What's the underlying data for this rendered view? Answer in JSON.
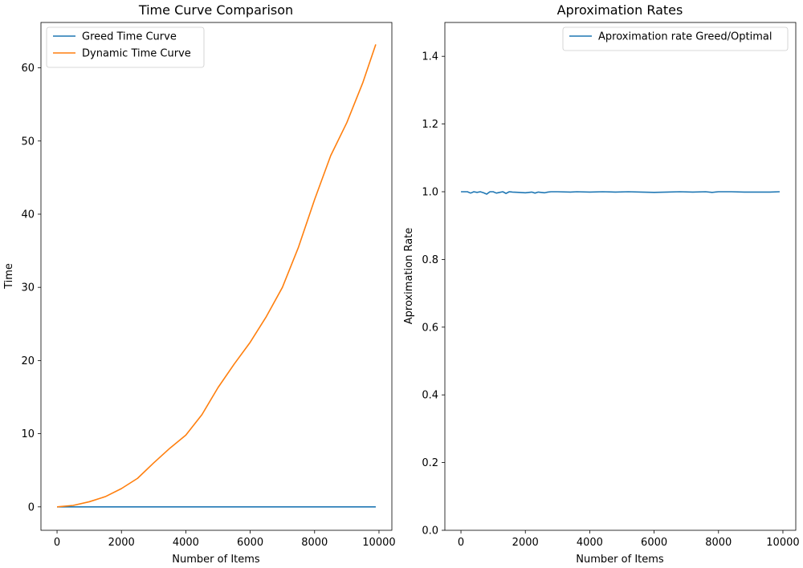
{
  "chart_data": [
    {
      "type": "line",
      "title": "Time Curve Comparison",
      "xlabel": "Number of Items",
      "ylabel": "Time",
      "xlim": [
        -500,
        10400
      ],
      "ylim": [
        -3.2,
        66.2
      ],
      "xticks": [
        "0",
        "2000",
        "4000",
        "6000",
        "8000",
        "10000"
      ],
      "yticks": [
        "0",
        "10",
        "20",
        "30",
        "40",
        "50",
        "60"
      ],
      "legend": "top-left",
      "x": [
        0,
        500,
        1000,
        1500,
        2000,
        2500,
        3000,
        3500,
        4000,
        4500,
        5000,
        5500,
        6000,
        6500,
        7000,
        7500,
        8000,
        8500,
        9000,
        9500,
        9900
      ],
      "series": [
        {
          "name": "Greed Time Curve",
          "color": "#1f77b4",
          "values": [
            0,
            0,
            0,
            0,
            0,
            0,
            0,
            0,
            0,
            0,
            0,
            0,
            0,
            0,
            0,
            0,
            0,
            0,
            0,
            0,
            0
          ]
        },
        {
          "name": "Dynamic Time Curve",
          "color": "#ff7f0e",
          "values": [
            0.0,
            0.2,
            0.7,
            1.4,
            2.5,
            3.9,
            6.0,
            8.0,
            9.8,
            12.6,
            16.3,
            19.5,
            22.5,
            26.0,
            30.0,
            35.5,
            42.0,
            48.0,
            52.5,
            58.0,
            63.2
          ]
        }
      ]
    },
    {
      "type": "line",
      "title": "Aproximation Rates",
      "xlabel": "Number of Items",
      "ylabel": "Aproximation Rate",
      "xlim": [
        -500,
        10400
      ],
      "ylim": [
        0.0,
        1.5
      ],
      "xticks": [
        "0",
        "2000",
        "4000",
        "6000",
        "8000",
        "10000"
      ],
      "yticks": [
        "0.0",
        "0.2",
        "0.4",
        "0.6",
        "0.8",
        "1.0",
        "1.2",
        "1.4"
      ],
      "legend": "top-right",
      "x": [
        0,
        100,
        200,
        300,
        400,
        500,
        600,
        700,
        800,
        900,
        1000,
        1100,
        1200,
        1300,
        1400,
        1500,
        1600,
        1800,
        2000,
        2200,
        2300,
        2400,
        2600,
        2700,
        2800,
        3000,
        3400,
        3600,
        4000,
        4400,
        4800,
        5200,
        5600,
        6000,
        6400,
        6800,
        7200,
        7600,
        7800,
        8000,
        8400,
        8800,
        9200,
        9600,
        9900
      ],
      "series": [
        {
          "name": "Aproximation rate Greed/Optimal",
          "color": "#1f77b4",
          "values": [
            1.0,
            1.0,
            1.0,
            0.996,
            1.0,
            0.998,
            1.0,
            0.997,
            0.993,
            1.0,
            1.0,
            0.996,
            0.998,
            1.0,
            0.995,
            1.0,
            0.999,
            0.998,
            0.997,
            0.999,
            0.996,
            0.999,
            0.997,
            0.999,
            1.0,
            1.0,
            0.999,
            1.0,
            0.999,
            1.0,
            0.999,
            1.0,
            0.999,
            0.998,
            0.999,
            1.0,
            0.999,
            1.0,
            0.998,
            1.0,
            1.0,
            0.999,
            0.999,
            0.999,
            1.0
          ]
        }
      ]
    }
  ]
}
